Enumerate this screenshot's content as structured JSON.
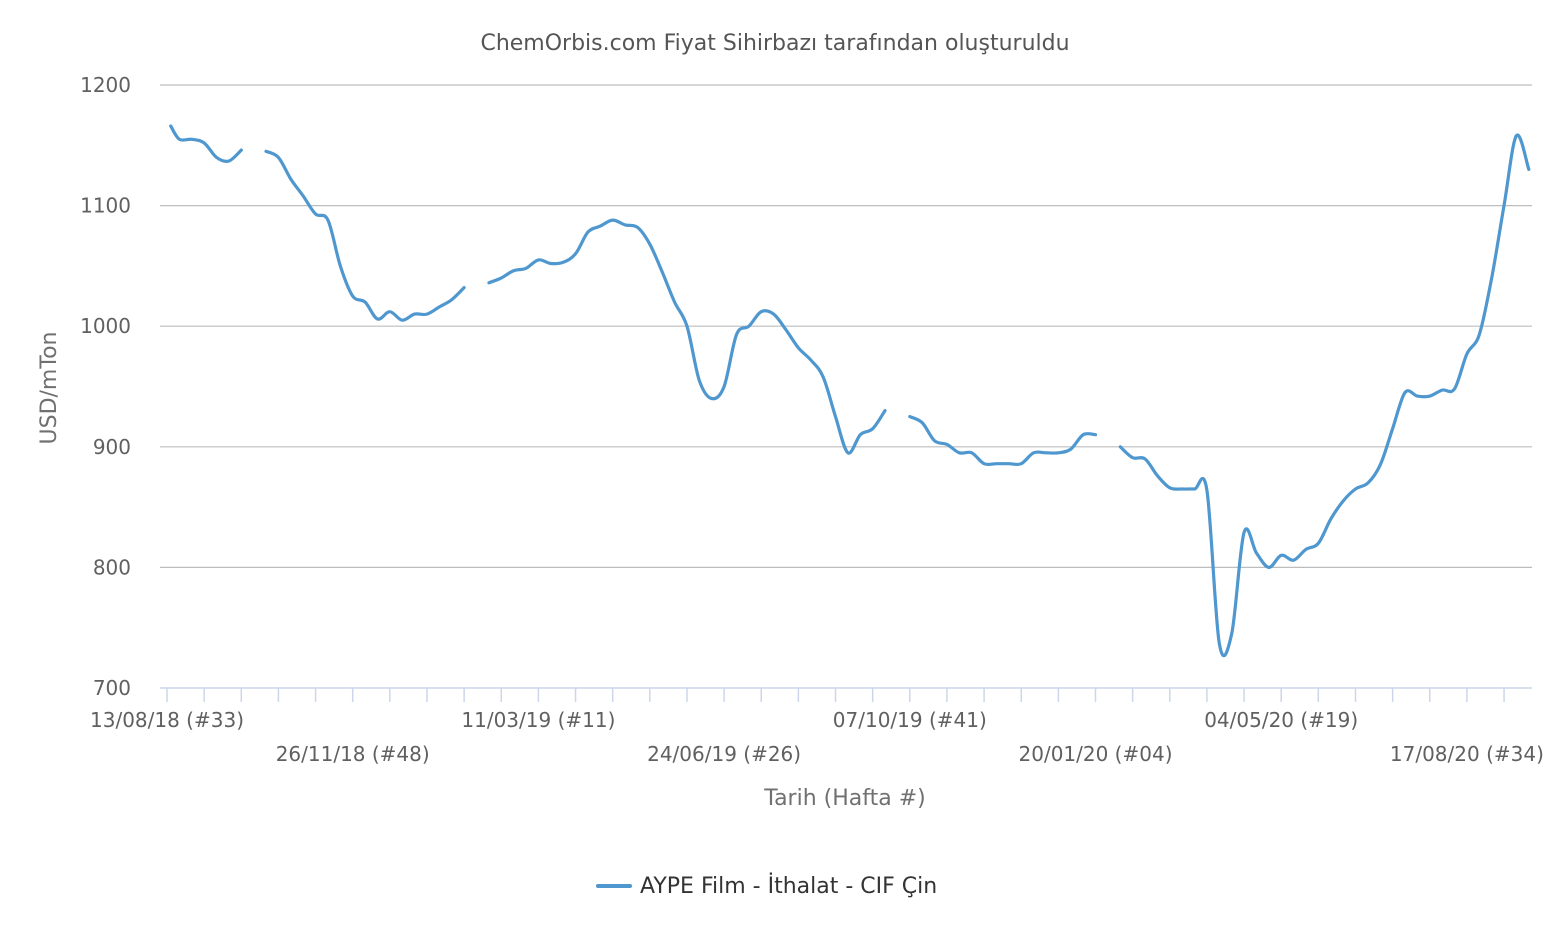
{
  "chart_data": {
    "type": "line",
    "title": "ChemOrbis.com Fiyat Sihirbazı tarafından oluşturuldu",
    "xlabel": "Tarih (Hafta #)",
    "ylabel": "USD/mTon",
    "ylim": [
      700,
      1200
    ],
    "yticks": [
      "1200",
      "1100",
      "1000",
      "900",
      "800",
      "700"
    ],
    "grid": true,
    "legend_position": "bottom",
    "colors": {
      "series": "#4f97cf",
      "grid": "#bdbdbd",
      "axis": "#ccd6eb"
    },
    "x_ticks": [
      {
        "label": "13/08/18 (#33)",
        "week": 0
      },
      {
        "label": "26/11/18 (#48)",
        "week": 15
      },
      {
        "label": "11/03/19 (#11)",
        "week": 30
      },
      {
        "label": "24/06/19 (#26)",
        "week": 45
      },
      {
        "label": "07/10/19 (#41)",
        "week": 60
      },
      {
        "label": "20/01/20 (#04)",
        "week": 75
      },
      {
        "label": "04/05/20 (#19)",
        "week": 90
      },
      {
        "label": "17/08/20 (#34)",
        "week": 105
      }
    ],
    "series": [
      {
        "name": "AYPE Film - İthalat  - CIF Çin",
        "points": [
          [
            0.3,
            1166
          ],
          [
            1,
            1155
          ],
          [
            2,
            1155
          ],
          [
            3,
            1152
          ],
          [
            4,
            1140
          ],
          [
            5,
            1137
          ],
          [
            6,
            1146
          ],
          [
            8,
            1145
          ],
          [
            9,
            1140
          ],
          [
            10,
            1122
          ],
          [
            11,
            1108
          ],
          [
            12,
            1093
          ],
          [
            13,
            1088
          ],
          [
            14,
            1050
          ],
          [
            15,
            1025
          ],
          [
            16,
            1020
          ],
          [
            17,
            1006
          ],
          [
            18,
            1012
          ],
          [
            19,
            1005
          ],
          [
            20,
            1010
          ],
          [
            21,
            1010
          ],
          [
            22,
            1016
          ],
          [
            23,
            1022
          ],
          [
            24,
            1032
          ],
          [
            26,
            1036
          ],
          [
            27,
            1040
          ],
          [
            28,
            1046
          ],
          [
            29,
            1048
          ],
          [
            30,
            1055
          ],
          [
            31,
            1052
          ],
          [
            32,
            1053
          ],
          [
            33,
            1060
          ],
          [
            34,
            1078
          ],
          [
            35,
            1083
          ],
          [
            36,
            1088
          ],
          [
            37,
            1084
          ],
          [
            38,
            1082
          ],
          [
            39,
            1068
          ],
          [
            40,
            1045
          ],
          [
            41,
            1020
          ],
          [
            42,
            1000
          ],
          [
            43,
            955
          ],
          [
            44,
            940
          ],
          [
            45,
            950
          ],
          [
            46,
            993
          ],
          [
            47,
            1000
          ],
          [
            48,
            1012
          ],
          [
            49,
            1010
          ],
          [
            50,
            997
          ],
          [
            51,
            982
          ],
          [
            52,
            972
          ],
          [
            53,
            958
          ],
          [
            54,
            925
          ],
          [
            55,
            895
          ],
          [
            56,
            910
          ],
          [
            57,
            915
          ],
          [
            58,
            930
          ],
          [
            60,
            925
          ],
          [
            61,
            920
          ],
          [
            62,
            905
          ],
          [
            63,
            902
          ],
          [
            64,
            895
          ],
          [
            65,
            895
          ],
          [
            66,
            886
          ],
          [
            67,
            886
          ],
          [
            68,
            886
          ],
          [
            69,
            886
          ],
          [
            70,
            895
          ],
          [
            71,
            895
          ],
          [
            72,
            895
          ],
          [
            73,
            898
          ],
          [
            74,
            910
          ],
          [
            75,
            910
          ],
          [
            77,
            900
          ],
          [
            78,
            891
          ],
          [
            79,
            890
          ],
          [
            80,
            876
          ],
          [
            81,
            866
          ],
          [
            82,
            865
          ],
          [
            83,
            865
          ],
          [
            84,
            864
          ],
          [
            85,
            737
          ],
          [
            86,
            745
          ],
          [
            87,
            829
          ],
          [
            88,
            812
          ],
          [
            89,
            800
          ],
          [
            90,
            810
          ],
          [
            91,
            806
          ],
          [
            92,
            815
          ],
          [
            93,
            820
          ],
          [
            94,
            840
          ],
          [
            95,
            855
          ],
          [
            96,
            865
          ],
          [
            97,
            870
          ],
          [
            98,
            885
          ],
          [
            99,
            915
          ],
          [
            100,
            945
          ],
          [
            101,
            942
          ],
          [
            102,
            942
          ],
          [
            103,
            947
          ],
          [
            104,
            948
          ],
          [
            105,
            977
          ],
          [
            106,
            993
          ],
          [
            107,
            1040
          ],
          [
            108,
            1100
          ],
          [
            109,
            1158
          ],
          [
            110,
            1130
          ]
        ]
      }
    ]
  }
}
